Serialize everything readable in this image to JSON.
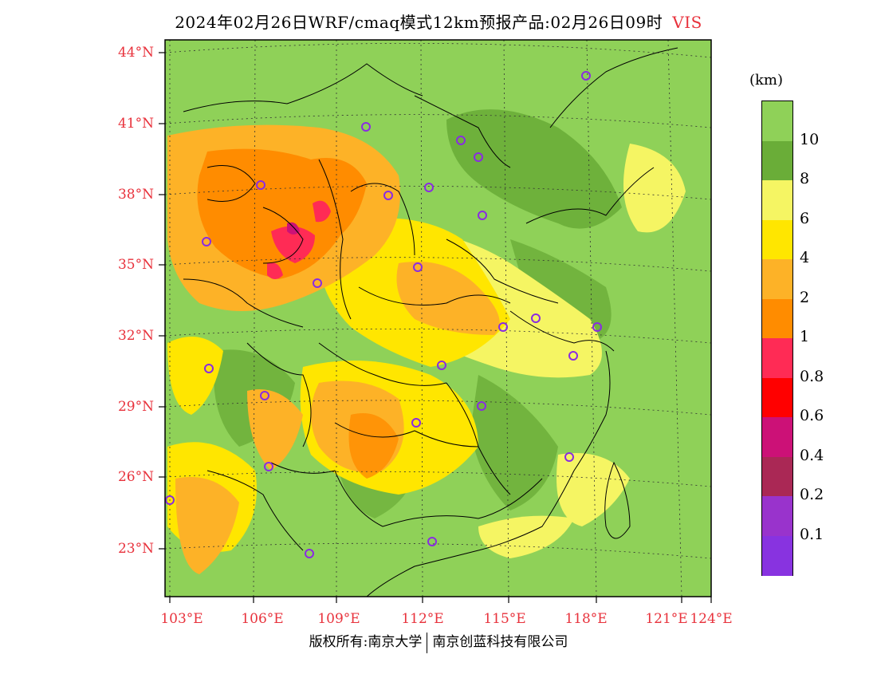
{
  "title": {
    "text": "2024年02月26日WRF/cmaq模式12km预报产品:02月26日09时",
    "variable": "VIS"
  },
  "legend": {
    "unit": "(km)",
    "classes": [
      {
        "label": "10",
        "color": "#8fd158"
      },
      {
        "label": "8",
        "color": "#6aad38"
      },
      {
        "label": "6",
        "color": "#f5f563"
      },
      {
        "label": "4",
        "color": "#ffe600"
      },
      {
        "label": "2",
        "color": "#fdb227"
      },
      {
        "label": "1",
        "color": "#ff8c00"
      },
      {
        "label": "0.8",
        "color": "#ff2b55"
      },
      {
        "label": "0.6",
        "color": "#ff0000"
      },
      {
        "label": "0.4",
        "color": "#cc1177"
      },
      {
        "label": "0.2",
        "color": "#aa2855"
      },
      {
        "label": "0.1",
        "color": "#9933cc"
      },
      {
        "label": "",
        "color": "#8833e0"
      }
    ]
  },
  "axes": {
    "lat_labels": [
      "44°N",
      "41°N",
      "38°N",
      "35°N",
      "32°N",
      "29°N",
      "26°N",
      "23°N"
    ],
    "lon_labels": [
      "103°E",
      "106°E",
      "109°E",
      "112°E",
      "115°E",
      "118°E",
      "121°E",
      "124°E"
    ],
    "label_color": "#e8323c"
  },
  "footer": {
    "copyright": "版权所有:南京大学",
    "company": "南京创蓝科技有限公司"
  },
  "map": {
    "ocean_color": "#8fd158",
    "stations": 20,
    "station_color": "#8a2be2"
  }
}
